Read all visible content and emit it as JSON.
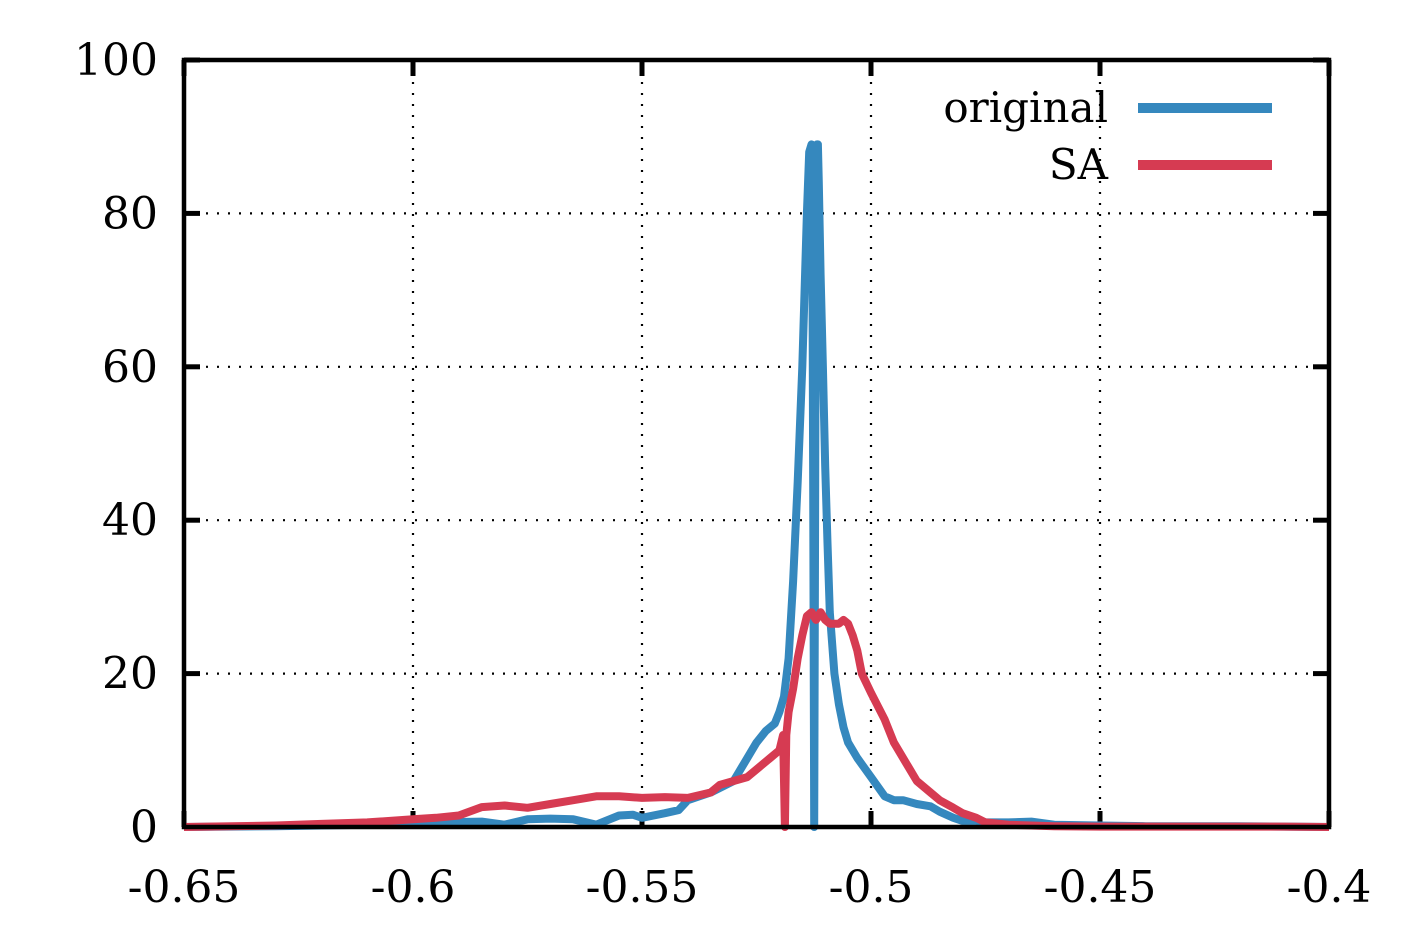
{
  "chart_data": {
    "type": "line",
    "title": "",
    "xlabel": "",
    "ylabel": "",
    "xlim": [
      -0.65,
      -0.4
    ],
    "ylim": [
      0,
      100
    ],
    "xticks": [
      -0.65,
      -0.6,
      -0.55,
      -0.5,
      -0.45,
      -0.4
    ],
    "xtick_labels": [
      "-0.65",
      "-0.6",
      "-0.55",
      "-0.5",
      "-0.45",
      "-0.4"
    ],
    "yticks": [
      0,
      20,
      40,
      60,
      80,
      100
    ],
    "ytick_labels": [
      "0",
      "20",
      "40",
      "60",
      "80",
      "100"
    ],
    "grid": true,
    "legend_position": "top-right",
    "series": [
      {
        "name": "original",
        "color": "#3588be",
        "x": [
          -0.65,
          -0.63,
          -0.61,
          -0.595,
          -0.585,
          -0.58,
          -0.575,
          -0.57,
          -0.565,
          -0.56,
          -0.555,
          -0.552,
          -0.55,
          -0.545,
          -0.542,
          -0.54,
          -0.535,
          -0.53,
          -0.528,
          -0.525,
          -0.523,
          -0.521,
          -0.52,
          -0.519,
          -0.518,
          -0.517,
          -0.516,
          -0.515,
          -0.5145,
          -0.514,
          -0.5135,
          -0.513,
          -0.5128,
          -0.5126,
          -0.5124,
          -0.5122,
          -0.512,
          -0.5118,
          -0.5116,
          -0.5114,
          -0.511,
          -0.5105,
          -0.51,
          -0.5095,
          -0.509,
          -0.508,
          -0.507,
          -0.506,
          -0.505,
          -0.503,
          -0.5,
          -0.497,
          -0.495,
          -0.493,
          -0.49,
          -0.487,
          -0.485,
          -0.482,
          -0.48,
          -0.477,
          -0.475,
          -0.47,
          -0.465,
          -0.46,
          -0.45,
          -0.44,
          -0.43,
          -0.42,
          -0.41,
          -0.4
        ],
        "y": [
          0,
          0.1,
          0.3,
          0.6,
          0.7,
          0.3,
          1.0,
          1.1,
          1.0,
          0.3,
          1.5,
          1.6,
          1.2,
          1.8,
          2.2,
          3.5,
          4.5,
          6.0,
          8.0,
          11.0,
          12.5,
          13.5,
          15.0,
          17.0,
          22.0,
          32.0,
          45.0,
          60.0,
          70.0,
          80.0,
          88.0,
          89.0,
          75.0,
          40.0,
          0.0,
          40.0,
          85.0,
          89.0,
          89.0,
          84.0,
          72.0,
          60.0,
          47.0,
          37.0,
          28.0,
          20.0,
          16.0,
          13.0,
          11.0,
          9.0,
          6.5,
          4.0,
          3.5,
          3.5,
          3.0,
          2.7,
          2.0,
          1.2,
          0.8,
          0.8,
          0.6,
          0.6,
          0.7,
          0.3,
          0.2,
          0.1,
          0.1,
          0.1,
          0.05,
          0.0
        ]
      },
      {
        "name": "SA",
        "color": "#d63b52",
        "x": [
          -0.65,
          -0.63,
          -0.62,
          -0.61,
          -0.6,
          -0.595,
          -0.59,
          -0.585,
          -0.58,
          -0.575,
          -0.57,
          -0.565,
          -0.56,
          -0.555,
          -0.55,
          -0.545,
          -0.54,
          -0.535,
          -0.533,
          -0.53,
          -0.527,
          -0.524,
          -0.522,
          -0.52,
          -0.5192,
          -0.5188,
          -0.5185,
          -0.518,
          -0.517,
          -0.516,
          -0.515,
          -0.514,
          -0.513,
          -0.512,
          -0.511,
          -0.51,
          -0.509,
          -0.508,
          -0.507,
          -0.506,
          -0.505,
          -0.504,
          -0.503,
          -0.502,
          -0.5,
          -0.497,
          -0.495,
          -0.492,
          -0.49,
          -0.487,
          -0.485,
          -0.482,
          -0.48,
          -0.477,
          -0.475,
          -0.47,
          -0.465,
          -0.46,
          -0.45,
          -0.44,
          -0.43,
          -0.42,
          -0.41,
          -0.4
        ],
        "y": [
          0,
          0.2,
          0.4,
          0.6,
          1.0,
          1.2,
          1.5,
          2.6,
          2.8,
          2.5,
          3.0,
          3.5,
          4.0,
          4.0,
          3.8,
          3.9,
          3.8,
          4.5,
          5.5,
          6.0,
          6.5,
          8.0,
          9.0,
          10.0,
          12.0,
          0.0,
          12.0,
          15.0,
          18.0,
          22.0,
          25.0,
          27.5,
          28.0,
          27.0,
          28.0,
          27.0,
          26.5,
          26.5,
          26.5,
          27.0,
          26.5,
          25.0,
          23.0,
          20.0,
          17.5,
          14.0,
          11.0,
          8.0,
          6.0,
          4.5,
          3.5,
          2.5,
          1.8,
          1.2,
          0.6,
          0.3,
          0.2,
          0.1,
          0.05,
          0.05,
          0.05,
          0.05,
          0.05,
          0.0
        ]
      }
    ]
  }
}
